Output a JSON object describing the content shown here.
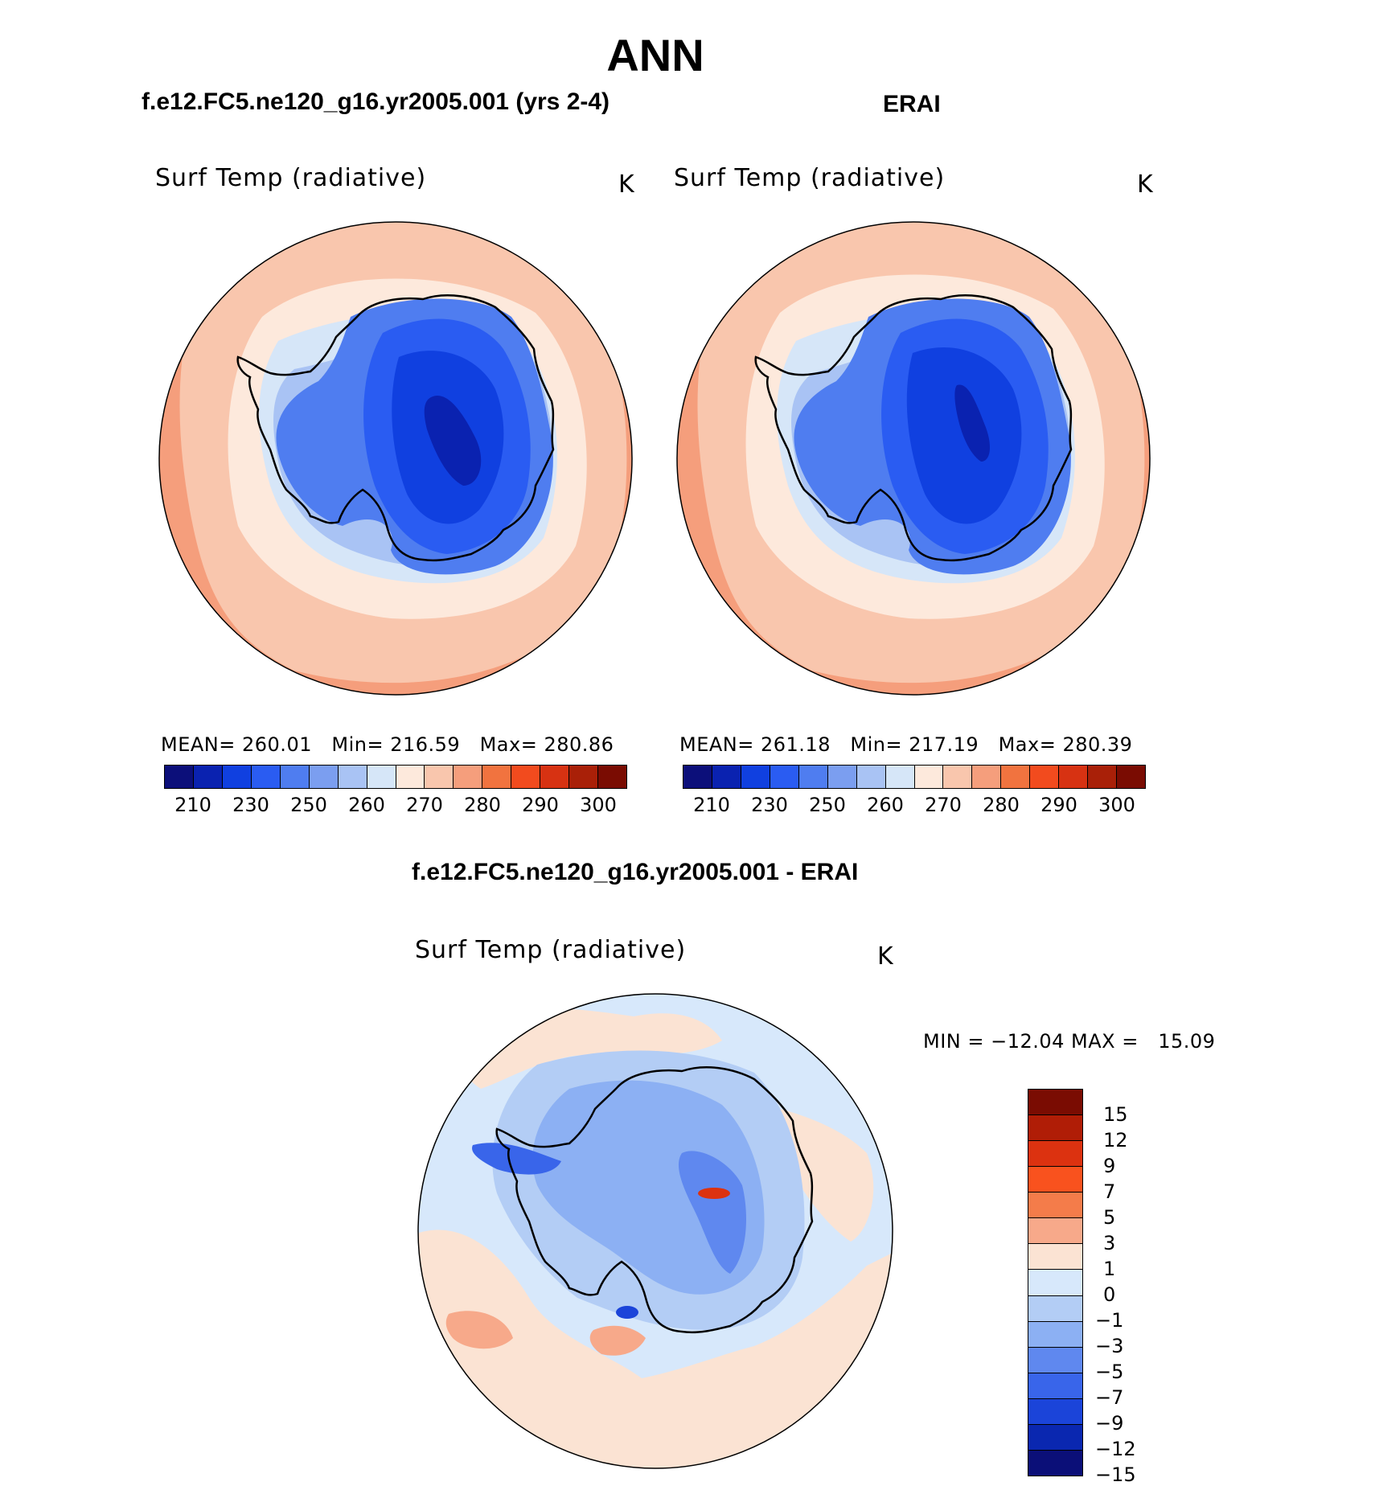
{
  "title": "ANN",
  "panels": {
    "left": {
      "case": "f.e12.FC5.ne120_g16.yr2005.001 (yrs 2-4)",
      "variable": "Surf Temp (radiative)",
      "units": "K",
      "stats": {
        "mean_label": "MEAN=",
        "mean": "260.01",
        "min_label": "Min=",
        "min": "216.59",
        "max_label": "Max=",
        "max": "280.86"
      }
    },
    "right": {
      "case": "ERAI",
      "variable": "Surf Temp (radiative)",
      "units": "K",
      "stats": {
        "mean_label": "MEAN=",
        "mean": "261.18",
        "min_label": "Min=",
        "min": "217.19",
        "max_label": "Max=",
        "max": "280.39"
      }
    },
    "diff": {
      "case": "f.e12.FC5.ne120_g16.yr2005.001 - ERAI",
      "variable": "Surf Temp (radiative)",
      "units": "K",
      "minmax": "MIN = −12.04 MAX =   15.09"
    }
  },
  "colorbar_abs": {
    "colors": [
      "#0c0f7a",
      "#0a22b0",
      "#1040e0",
      "#2a5cf2",
      "#4f7df0",
      "#7b9ef0",
      "#a9c3f4",
      "#d6e6f8",
      "#fde9dc",
      "#f9c6ad",
      "#f59e7c",
      "#f1733f",
      "#f24b1e",
      "#d73212",
      "#a92008",
      "#7a0c02"
    ],
    "ticks": [
      "210",
      "230",
      "250",
      "260",
      "270",
      "280",
      "290",
      "300"
    ]
  },
  "colorbar_diff": {
    "colors": [
      "#7a0c02",
      "#b01d06",
      "#dc3210",
      "#f9521e",
      "#f47c4a",
      "#f7a98a",
      "#fbe3d3",
      "#d7e8fb",
      "#b3cdf5",
      "#8cb0f3",
      "#5f88ef",
      "#3965ea",
      "#1b44d9",
      "#0a27b0",
      "#0b0f78"
    ],
    "labels": [
      "15",
      "12",
      "9",
      "7",
      "5",
      "3",
      "1",
      "0",
      "−1",
      "−3",
      "−5",
      "−7",
      "−9",
      "−12",
      "−15"
    ]
  }
}
